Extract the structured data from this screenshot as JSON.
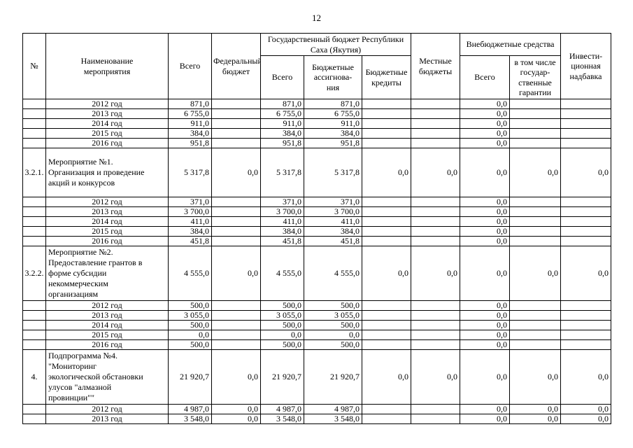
{
  "page_number": "12",
  "table": {
    "header": {
      "num": "№",
      "name": "Наименование\nмероприятия",
      "total": "Всего",
      "federal": "Федеральный\nбюджет",
      "state_group": "Государственный бюджет Республики\nСаха (Якутия)",
      "state_total": "Всего",
      "state_alloc": "Бюджетные\nассигнова-\nния",
      "state_credits": "Бюджетные\nкредиты",
      "local": "Местные\nбюджеты",
      "extra_group": "Внебюджетные средства",
      "extra_total": "Всего",
      "extra_guarantees": "в том числе\nгосудар-\nственные\nгарантии",
      "invest": "Инвести-\nционная\nнадбавка"
    },
    "rows": [
      {
        "type": "year",
        "num": "",
        "name": "2012 год",
        "values": [
          "871,0",
          "",
          "871,0",
          "871,0",
          "",
          "",
          "0,0",
          "",
          ""
        ]
      },
      {
        "type": "year",
        "num": "",
        "name": "2013 год",
        "values": [
          "6 755,0",
          "",
          "6 755,0",
          "6 755,0",
          "",
          "",
          "0,0",
          "",
          ""
        ]
      },
      {
        "type": "year",
        "num": "",
        "name": "2014 год",
        "values": [
          "911,0",
          "",
          "911,0",
          "911,0",
          "",
          "",
          "0,0",
          "",
          ""
        ]
      },
      {
        "type": "year",
        "num": "",
        "name": "2015 год",
        "values": [
          "384,0",
          "",
          "384,0",
          "384,0",
          "",
          "",
          "0,0",
          "",
          ""
        ]
      },
      {
        "type": "year",
        "num": "",
        "name": "2016 год",
        "values": [
          "951,8",
          "",
          "951,8",
          "951,8",
          "",
          "",
          "0,0",
          "",
          ""
        ]
      },
      {
        "type": "item",
        "num": "3.2.1.",
        "name": "Мероприятие №1.\nОрганизация и проведение\nакций и конкурсов",
        "values": [
          "5 317,8",
          "0,0",
          "5 317,8",
          "5 317,8",
          "0,0",
          "0,0",
          "0,0",
          "0,0",
          "0,0"
        ]
      },
      {
        "type": "year",
        "num": "",
        "name": "2012 год",
        "values": [
          "371,0",
          "",
          "371,0",
          "371,0",
          "",
          "",
          "0,0",
          "",
          ""
        ]
      },
      {
        "type": "year",
        "num": "",
        "name": "2013 год",
        "values": [
          "3 700,0",
          "",
          "3 700,0",
          "3 700,0",
          "",
          "",
          "0,0",
          "",
          ""
        ]
      },
      {
        "type": "year",
        "num": "",
        "name": "2014 год",
        "values": [
          "411,0",
          "",
          "411,0",
          "411,0",
          "",
          "",
          "0,0",
          "",
          ""
        ]
      },
      {
        "type": "year",
        "num": "",
        "name": "2015 год",
        "values": [
          "384,0",
          "",
          "384,0",
          "384,0",
          "",
          "",
          "0,0",
          "",
          ""
        ]
      },
      {
        "type": "year",
        "num": "",
        "name": "2016 год",
        "values": [
          "451,8",
          "",
          "451,8",
          "451,8",
          "",
          "",
          "0,0",
          "",
          ""
        ]
      },
      {
        "type": "item",
        "num": "3.2.2.",
        "name": "Мероприятие №2.\nПредоставление грантов в\nформе субсидии\nнекоммерческим\nорганизациям",
        "values": [
          "4 555,0",
          "0,0",
          "4 555,0",
          "4 555,0",
          "0,0",
          "0,0",
          "0,0",
          "0,0",
          "0,0"
        ]
      },
      {
        "type": "year",
        "num": "",
        "name": "2012 год",
        "values": [
          "500,0",
          "",
          "500,0",
          "500,0",
          "",
          "",
          "0,0",
          "",
          ""
        ]
      },
      {
        "type": "year",
        "num": "",
        "name": "2013 год",
        "values": [
          "3 055,0",
          "",
          "3 055,0",
          "3 055,0",
          "",
          "",
          "0,0",
          "",
          ""
        ]
      },
      {
        "type": "year",
        "num": "",
        "name": "2014 год",
        "values": [
          "500,0",
          "",
          "500,0",
          "500,0",
          "",
          "",
          "0,0",
          "",
          ""
        ]
      },
      {
        "type": "year",
        "num": "",
        "name": "2015 год",
        "values": [
          "0,0",
          "",
          "0,0",
          "0,0",
          "",
          "",
          "0,0",
          "",
          ""
        ]
      },
      {
        "type": "year",
        "num": "",
        "name": "2016 год",
        "values": [
          "500,0",
          "",
          "500,0",
          "500,0",
          "",
          "",
          "0,0",
          "",
          ""
        ]
      },
      {
        "type": "item",
        "num": "4.",
        "name": "Подпрограмма №4.\n\"Мониторинг\nэкологической обстановки\nулусов \"алмазной\nпровинции\"\"",
        "values": [
          "21 920,7",
          "0,0",
          "21 920,7",
          "21 920,7",
          "0,0",
          "0,0",
          "0,0",
          "0,0",
          "0,0"
        ]
      },
      {
        "type": "year",
        "num": "",
        "name": "2012 год",
        "values": [
          "4 987,0",
          "0,0",
          "4 987,0",
          "4 987,0",
          "",
          "",
          "0,0",
          "0,0",
          "0,0"
        ]
      },
      {
        "type": "year",
        "num": "",
        "name": "2013 год",
        "values": [
          "3 548,0",
          "0,0",
          "3 548,0",
          "3 548,0",
          "",
          "",
          "0,0",
          "0,0",
          "0,0"
        ]
      }
    ]
  }
}
